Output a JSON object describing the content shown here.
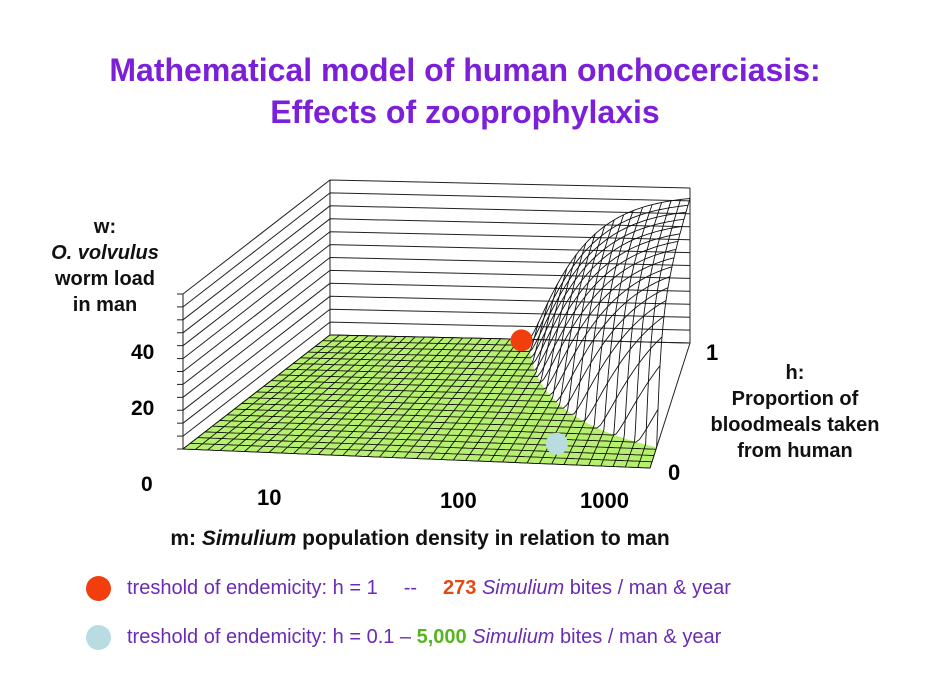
{
  "title": {
    "line1": "Mathematical model of human onchocerciasis:",
    "line2": "Effects of zooprophylaxis"
  },
  "chart_data": {
    "type": "surface",
    "z_axis": {
      "label_lines": [
        "w:",
        "O. volvulus",
        "worm load",
        "in man"
      ],
      "ticks": [
        "0",
        "20",
        "40"
      ]
    },
    "x_axis": {
      "label_prefix": "m: ",
      "label_italic": "Simulium",
      "label_suffix": " population density in relation to man",
      "ticks": [
        "10",
        "100",
        "1000"
      ],
      "scale": "log"
    },
    "y_axis": {
      "label_lines": [
        "h:",
        "Proportion of",
        "bloodmeals taken",
        "from human"
      ],
      "ticks": [
        "0",
        "1"
      ]
    },
    "markers": [
      {
        "name": "threshold h=1",
        "m": 273,
        "h": 1,
        "w": 0,
        "color": "#f23d0c"
      },
      {
        "name": "threshold h=0.1",
        "m": 5000,
        "h": 0.1,
        "w": 0,
        "color": "#b8dce1"
      }
    ],
    "zero_region_color": "#b7f06e",
    "surface_color": "#111111"
  },
  "legend": {
    "row1": {
      "text_a": "treshold of endemicity: h = 1",
      "dash": "--",
      "number": "273",
      "italic": "Simulium",
      "rest": " bites / man & year",
      "dot_color": "#f23d0c"
    },
    "row2": {
      "text_a": "treshold of endemicity: h = 0.1 – ",
      "number": "5,000",
      "italic": "Simulium",
      "rest": " bites / man & year",
      "dot_color": "#b8dce1"
    }
  }
}
